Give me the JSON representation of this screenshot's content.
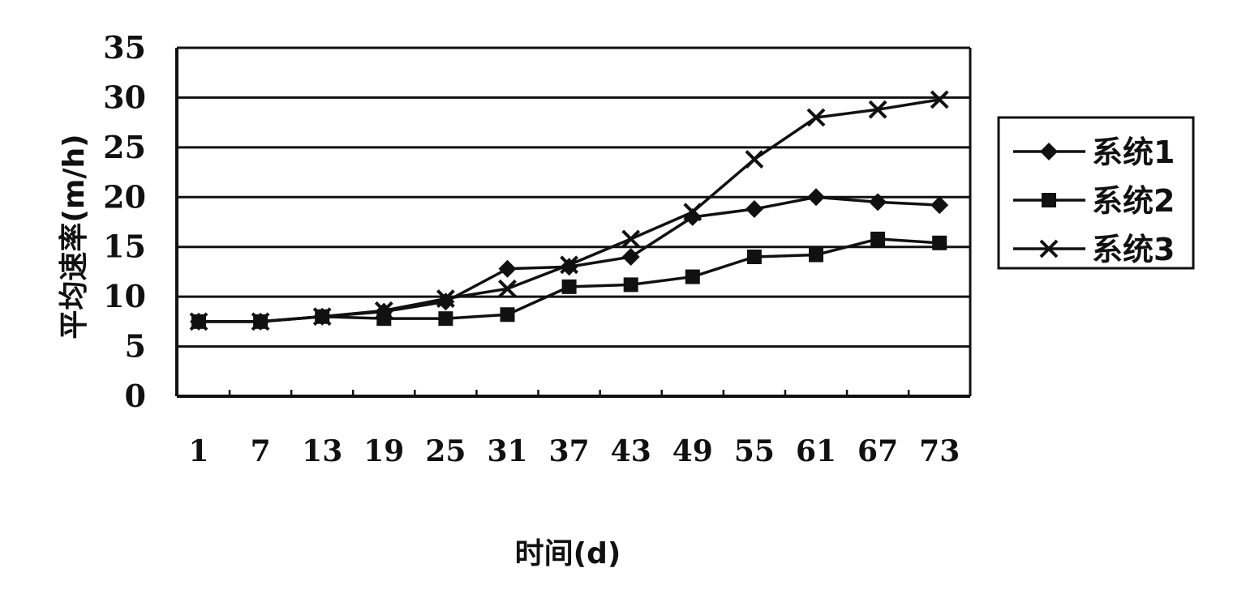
{
  "chart_data": {
    "type": "line",
    "xlabel": "时间(d)",
    "ylabel": "平均速率(m/h)",
    "categories": [
      "1",
      "7",
      "13",
      "19",
      "25",
      "31",
      "37",
      "43",
      "49",
      "55",
      "61",
      "67",
      "73"
    ],
    "ylim": [
      0,
      35
    ],
    "yticks": [
      "0",
      "5",
      "10",
      "15",
      "20",
      "25",
      "30",
      "35"
    ],
    "grid": "horizontal",
    "legend_position": "right",
    "series": [
      {
        "name": "系统1",
        "marker": "diamond",
        "values": [
          7.5,
          7.5,
          8,
          8.5,
          9.5,
          12.8,
          13,
          14,
          18,
          18.8,
          20,
          19.5,
          19.2
        ]
      },
      {
        "name": "系统2",
        "marker": "square",
        "values": [
          7.5,
          7.5,
          8,
          7.8,
          7.8,
          8.2,
          11,
          11.2,
          12,
          14,
          14.2,
          15.8,
          15.4
        ]
      },
      {
        "name": "系统3",
        "marker": "x",
        "values": [
          7.5,
          7.5,
          8,
          8.6,
          9.8,
          10.8,
          13.2,
          15.8,
          18.5,
          23.8,
          28,
          28.8,
          29.8
        ]
      }
    ],
    "colors": {
      "line": "#111111",
      "grid": "#111111",
      "background": "#ffffff"
    }
  }
}
